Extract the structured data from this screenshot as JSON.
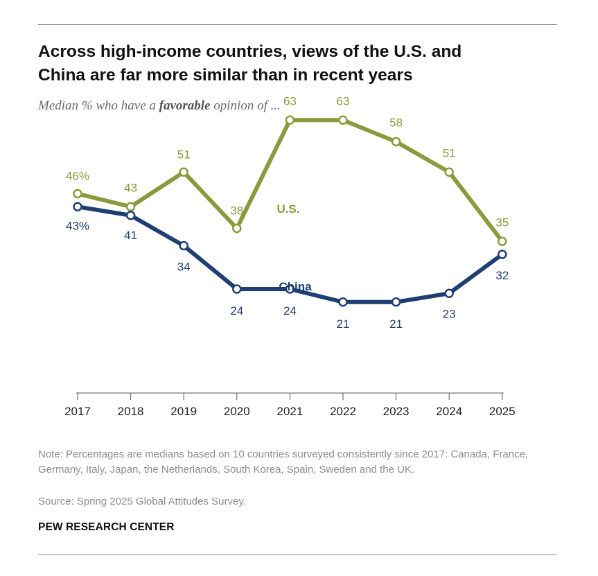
{
  "header": {
    "title_line1": "Across high-income countries, views of the U.S. and",
    "title_line2": "China are far more similar than in recent years",
    "subtitle_pre": "Median % who have a ",
    "subtitle_bold": "favorable",
    "subtitle_post": " opinion of ..."
  },
  "chart_data": {
    "type": "line",
    "title": "Across high-income countries, views of the U.S. and China are far more similar than in recent years",
    "ylabel": "Median % who have a favorable opinion",
    "xlabel": "",
    "categories": [
      "2017",
      "2018",
      "2019",
      "2020",
      "2021",
      "2022",
      "2023",
      "2024",
      "2025"
    ],
    "ylim": [
      0,
      100
    ],
    "series": [
      {
        "name": "U.S.",
        "color": "#8a9a3c",
        "values": [
          46,
          43,
          51,
          38,
          63,
          63,
          58,
          51,
          35
        ],
        "labels": [
          "46%",
          "43",
          "51",
          "38",
          "63",
          "63",
          "58",
          "51",
          "35"
        ]
      },
      {
        "name": "China",
        "color": "#1f3e72",
        "values": [
          43,
          41,
          34,
          24,
          24,
          21,
          21,
          23,
          32
        ],
        "labels": [
          "43%",
          "41",
          "34",
          "24",
          "24",
          "21",
          "21",
          "23",
          "32"
        ]
      }
    ]
  },
  "footer": {
    "note": "Note: Percentages are medians based on 10 countries surveyed consistently since 2017: Canada, France, Germany, Italy, Japan, the Netherlands, South Korea, Spain, Sweden and the UK.",
    "source": "Source: Spring 2025 Global Attitudes Survey.",
    "brand": "PEW RESEARCH CENTER"
  }
}
